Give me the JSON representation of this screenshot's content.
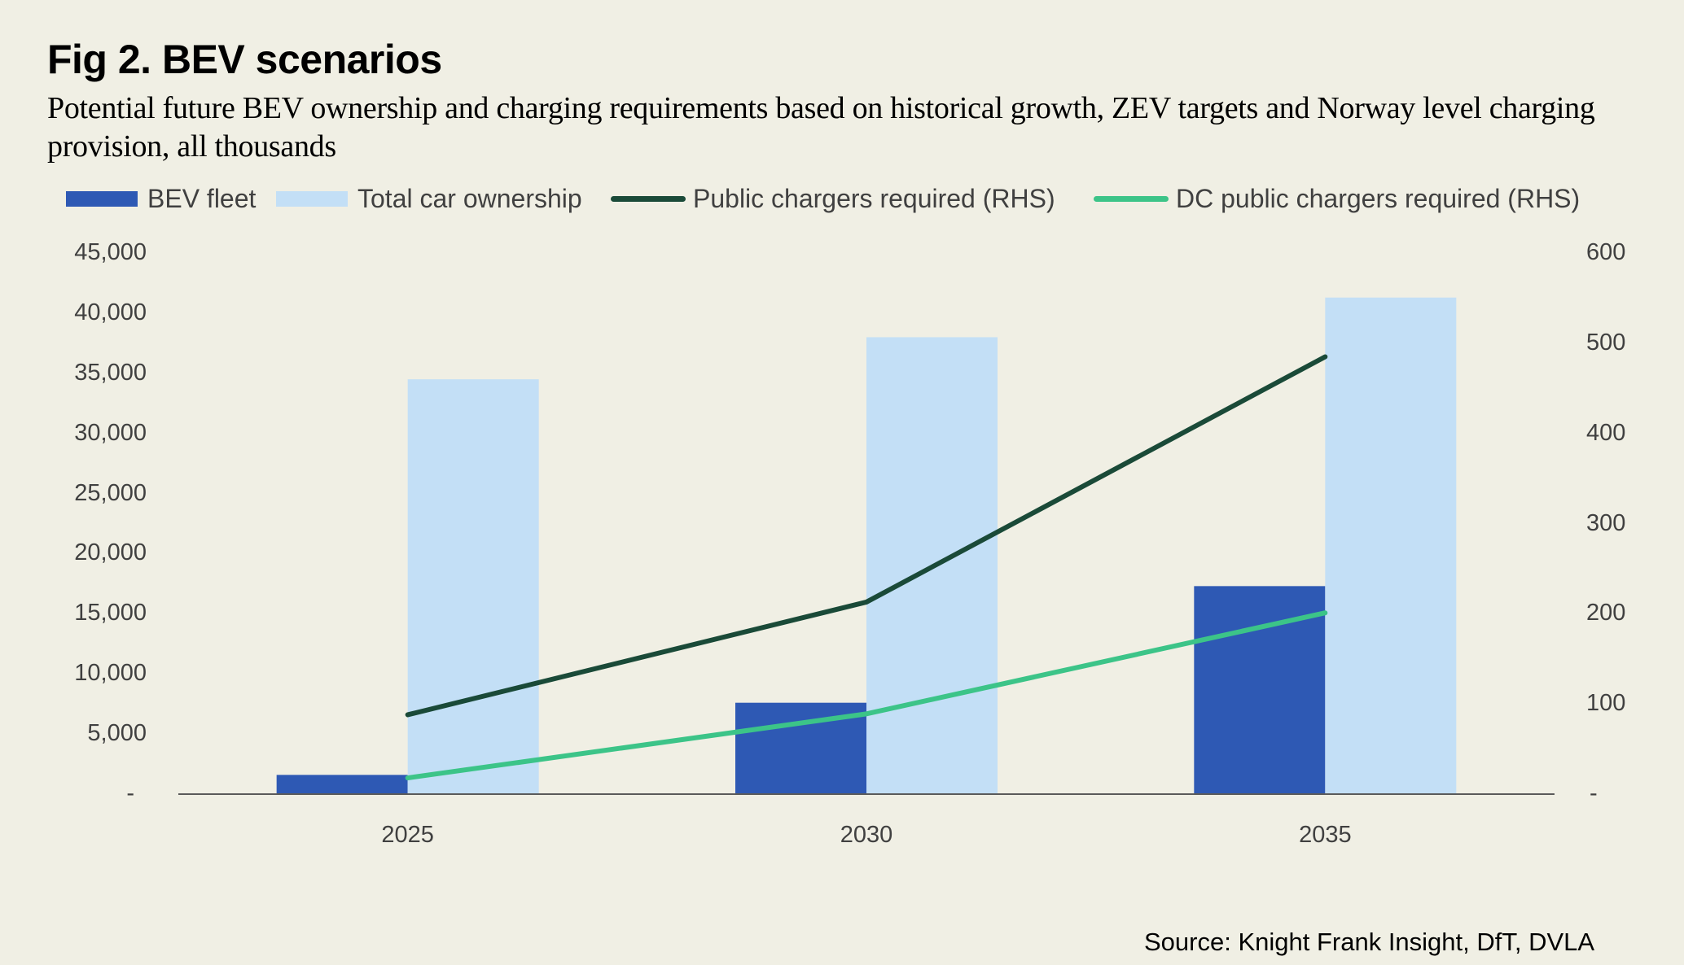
{
  "title": "Fig 2. BEV scenarios",
  "subtitle": "Potential future BEV ownership and charging requirements based on historical growth, ZEV targets and Norway level charging provision, all thousands",
  "source": "Source: Knight Frank Insight, DfT, DVLA",
  "colors": {
    "background": "#F0EFE4",
    "bev_fleet": "#2E59B4",
    "total_car_ownership": "#C3DFF6",
    "public_chargers": "#1A4A38",
    "dc_public_chargers": "#3CC488",
    "axis_text": "#404040",
    "axis_line": "#5A5A5A"
  },
  "legend": [
    {
      "label": "BEV fleet",
      "kind": "bar",
      "color_key": "bev_fleet"
    },
    {
      "label": "Total car ownership",
      "kind": "bar",
      "color_key": "total_car_ownership"
    },
    {
      "label": "Public chargers required (RHS)",
      "kind": "line",
      "color_key": "public_chargers"
    },
    {
      "label": "DC public chargers required (RHS)",
      "kind": "line",
      "color_key": "dc_public_chargers"
    }
  ],
  "chart_data": {
    "type": "bar",
    "title": "Fig 2. BEV scenarios",
    "subtitle": "Potential future BEV ownership and charging requirements based on historical growth, ZEV targets and Norway level charging provision, all thousands",
    "categories": [
      "2025",
      "2030",
      "2035"
    ],
    "series": [
      {
        "name": "BEV fleet",
        "type": "bar",
        "axis": "left",
        "values": [
          1600,
          7600,
          17300
        ]
      },
      {
        "name": "Total car ownership",
        "type": "bar",
        "axis": "left",
        "values": [
          34500,
          38000,
          41300
        ]
      },
      {
        "name": "Public chargers required (RHS)",
        "type": "line",
        "axis": "right",
        "values": [
          88,
          213,
          485
        ]
      },
      {
        "name": "DC public chargers required (RHS)",
        "type": "line",
        "axis": "right",
        "values": [
          18,
          89,
          201
        ]
      }
    ],
    "xlabel": "",
    "ylabel": "",
    "ylim": [
      0,
      45000
    ],
    "y2lim": [
      0,
      600
    ],
    "yticks": [
      0,
      5000,
      10000,
      15000,
      20000,
      25000,
      30000,
      35000,
      40000,
      45000
    ],
    "ytick_labels": [
      "-",
      "5,000",
      "10,000",
      "15,000",
      "20,000",
      "25,000",
      "30,000",
      "35,000",
      "40,000",
      "45,000"
    ],
    "y2ticks": [
      0,
      100,
      200,
      300,
      400,
      500,
      600
    ],
    "y2tick_labels": [
      "-",
      "100",
      "200",
      "300",
      "400",
      "500",
      "600"
    ],
    "grid": false,
    "legend_position": "top"
  }
}
